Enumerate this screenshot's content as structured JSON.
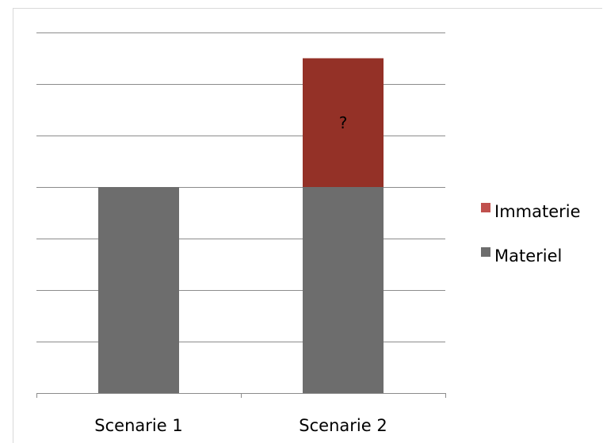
{
  "chart_data": {
    "type": "bar",
    "stacked": true,
    "categories": [
      "Scenarie 1",
      "Scenarie 2"
    ],
    "series": [
      {
        "name": "Materiel",
        "values": [
          4,
          4
        ],
        "color": "#6d6d6d"
      },
      {
        "name": "Immaterie",
        "values": [
          0,
          2.5
        ],
        "color": "#943127"
      }
    ],
    "legend_colors": [
      "#c0504d",
      "#6d6d6d"
    ],
    "annotation": "?",
    "ylim": [
      0,
      7
    ],
    "grid": true,
    "legend": "right"
  }
}
